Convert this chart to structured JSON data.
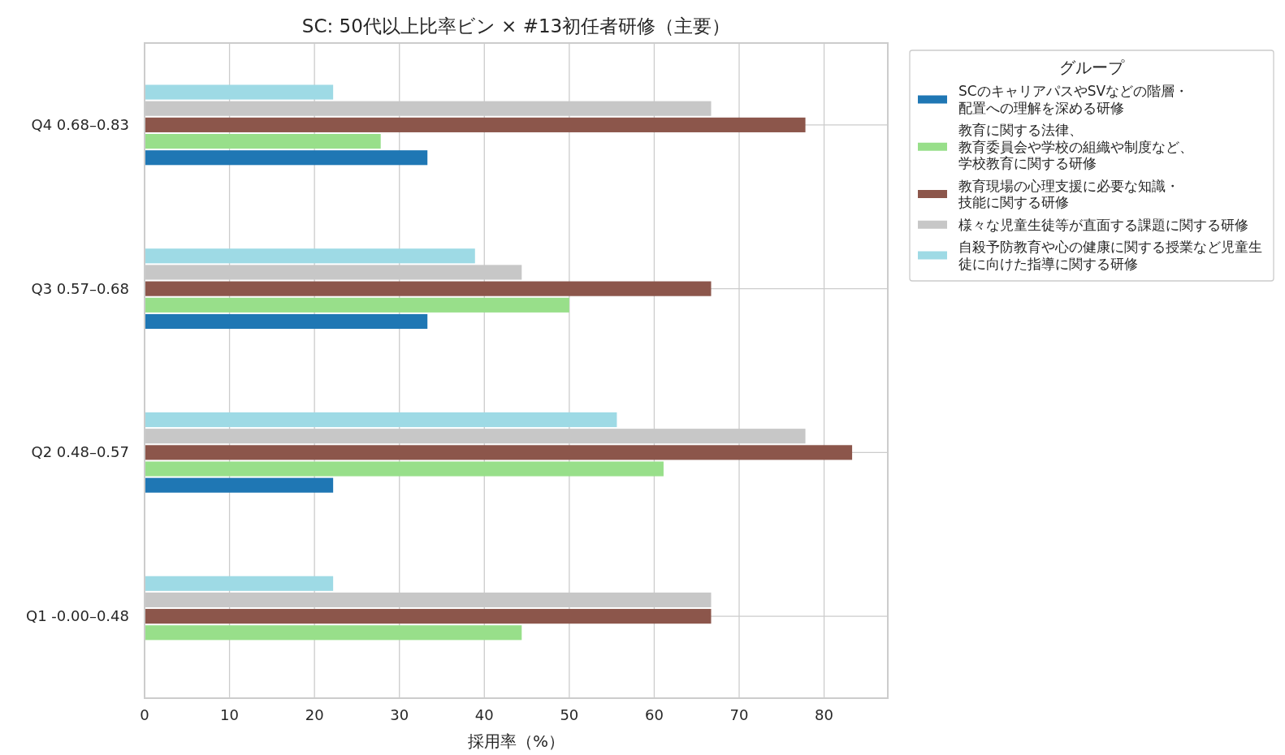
{
  "chart_data": {
    "type": "bar",
    "orientation": "horizontal",
    "title": "SC: 50代以上比率ビン × #13初任者研修（主要）",
    "xlabel": "採用率（%）",
    "legend_title": "グループ",
    "categories": [
      "Q4 0.68–0.83",
      "Q3 0.57–0.68",
      "Q2 0.48–0.57",
      "Q1 -0.00–0.48"
    ],
    "series": [
      {
        "name": "SCのキャリアパスやSVなどの階層・配置への理解を深める研修",
        "color": "#1f77b4",
        "values": [
          33.3,
          33.3,
          22.2,
          0
        ]
      },
      {
        "name": "教育に関する法律、教育委員会や学校の組織や制度など、学校教育に関する研修",
        "color": "#98df8a",
        "values": [
          27.8,
          50.0,
          61.1,
          44.4
        ]
      },
      {
        "name": "教育現場の心理支援に必要な知識・技能に関する研修",
        "color": "#8c564b",
        "values": [
          77.8,
          66.7,
          83.3,
          66.7
        ]
      },
      {
        "name": "様々な児童生徒等が直面する課題に関する研修",
        "color": "#c7c7c7",
        "values": [
          66.7,
          44.4,
          77.8,
          66.7
        ]
      },
      {
        "name": "自殺予防教育や心の健康に関する授業など児童生徒に向けた指導に関する研修",
        "color": "#9edae5",
        "values": [
          22.2,
          38.9,
          55.6,
          22.2
        ]
      }
    ],
    "xlim": [
      0,
      87.5
    ],
    "xticks": [
      0,
      10,
      20,
      30,
      40,
      50,
      60,
      70,
      80
    ],
    "grid": true,
    "legend": "right"
  }
}
